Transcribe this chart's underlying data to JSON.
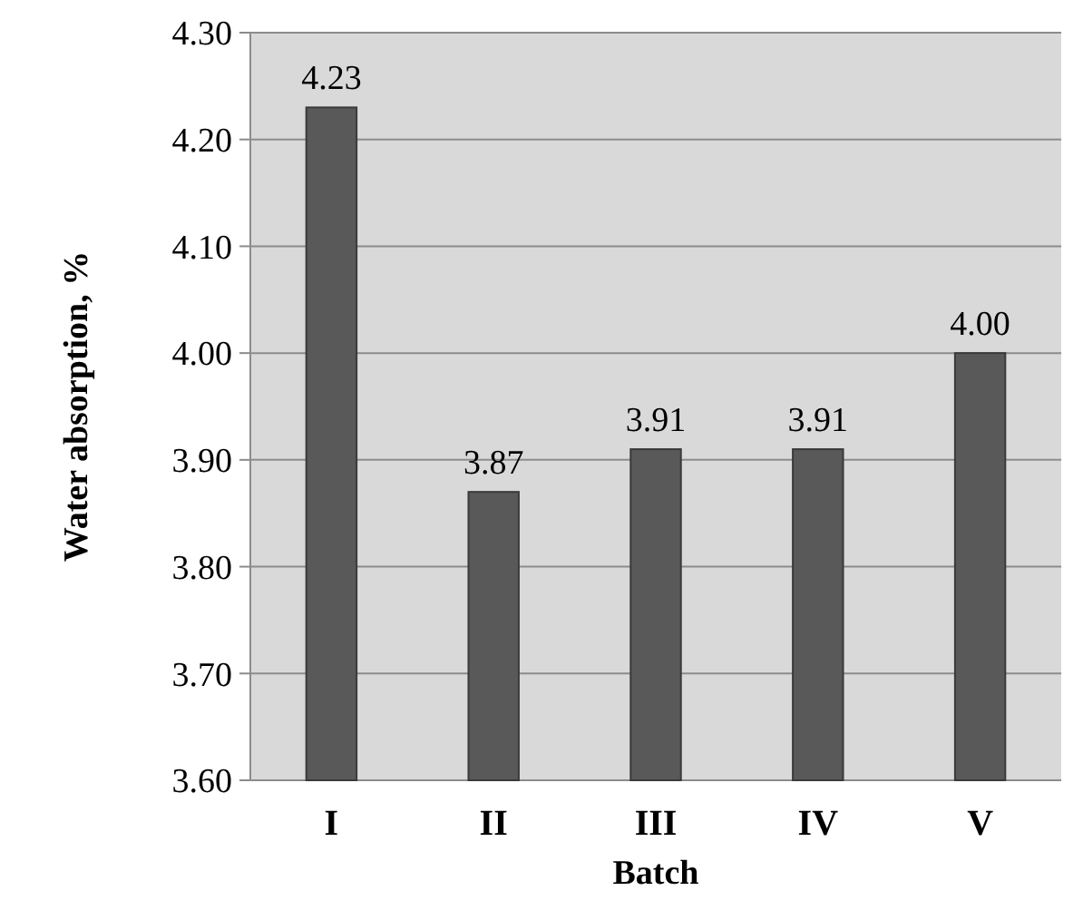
{
  "chart_data": {
    "type": "bar",
    "xlabel": "Batch",
    "ylabel": "Water absorption, %",
    "categories": [
      "I",
      "II",
      "III",
      "IV",
      "V"
    ],
    "values": [
      4.23,
      3.87,
      3.91,
      3.91,
      4.0
    ],
    "value_labels": [
      "4.23",
      "3.87",
      "3.91",
      "3.91",
      "4.00"
    ],
    "color": "#595959",
    "ylim": [
      3.6,
      4.3
    ],
    "yticks": [
      {
        "value": 3.6,
        "label": "3.60"
      },
      {
        "value": 3.7,
        "label": "3.70"
      },
      {
        "value": 3.8,
        "label": "3.80"
      },
      {
        "value": 3.9,
        "label": "3.90"
      },
      {
        "value": 4.0,
        "label": "4.00"
      },
      {
        "value": 4.1,
        "label": "4.10"
      },
      {
        "value": 4.2,
        "label": "4.20"
      },
      {
        "value": 4.3,
        "label": "4.30"
      }
    ],
    "grid": true
  }
}
